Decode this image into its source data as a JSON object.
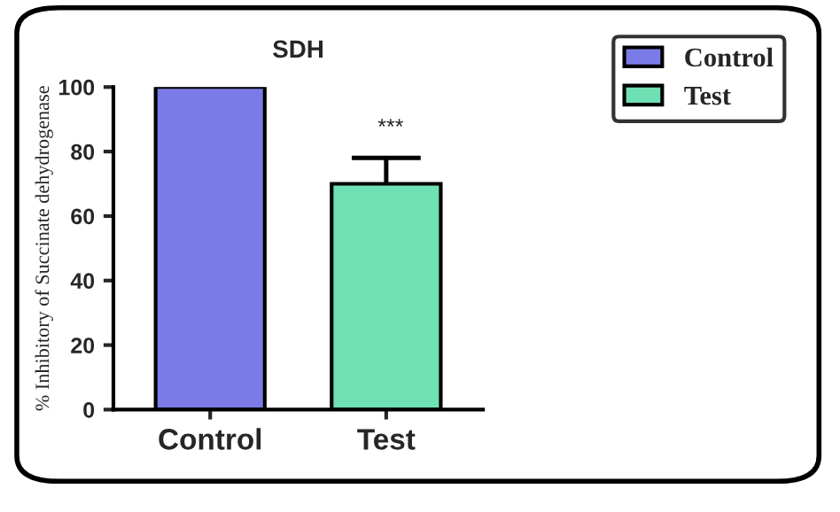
{
  "chart_data": {
    "type": "bar",
    "title": "SDH",
    "ylabel": "% Inhibitory of Succinate dehydrogenase",
    "categories": [
      "Control",
      "Test"
    ],
    "series": [
      {
        "name": "Control",
        "color": "#7b7be8",
        "values": [
          100,
          null
        ]
      },
      {
        "name": "Test",
        "color": "#6fe0b4",
        "values": [
          null,
          70
        ],
        "errors": [
          null,
          8
        ]
      }
    ],
    "ylim": [
      0,
      100
    ],
    "yticks": [
      0,
      20,
      40,
      60,
      80,
      100
    ],
    "annotations": [
      "***"
    ],
    "legend": "top right",
    "grid": false
  }
}
